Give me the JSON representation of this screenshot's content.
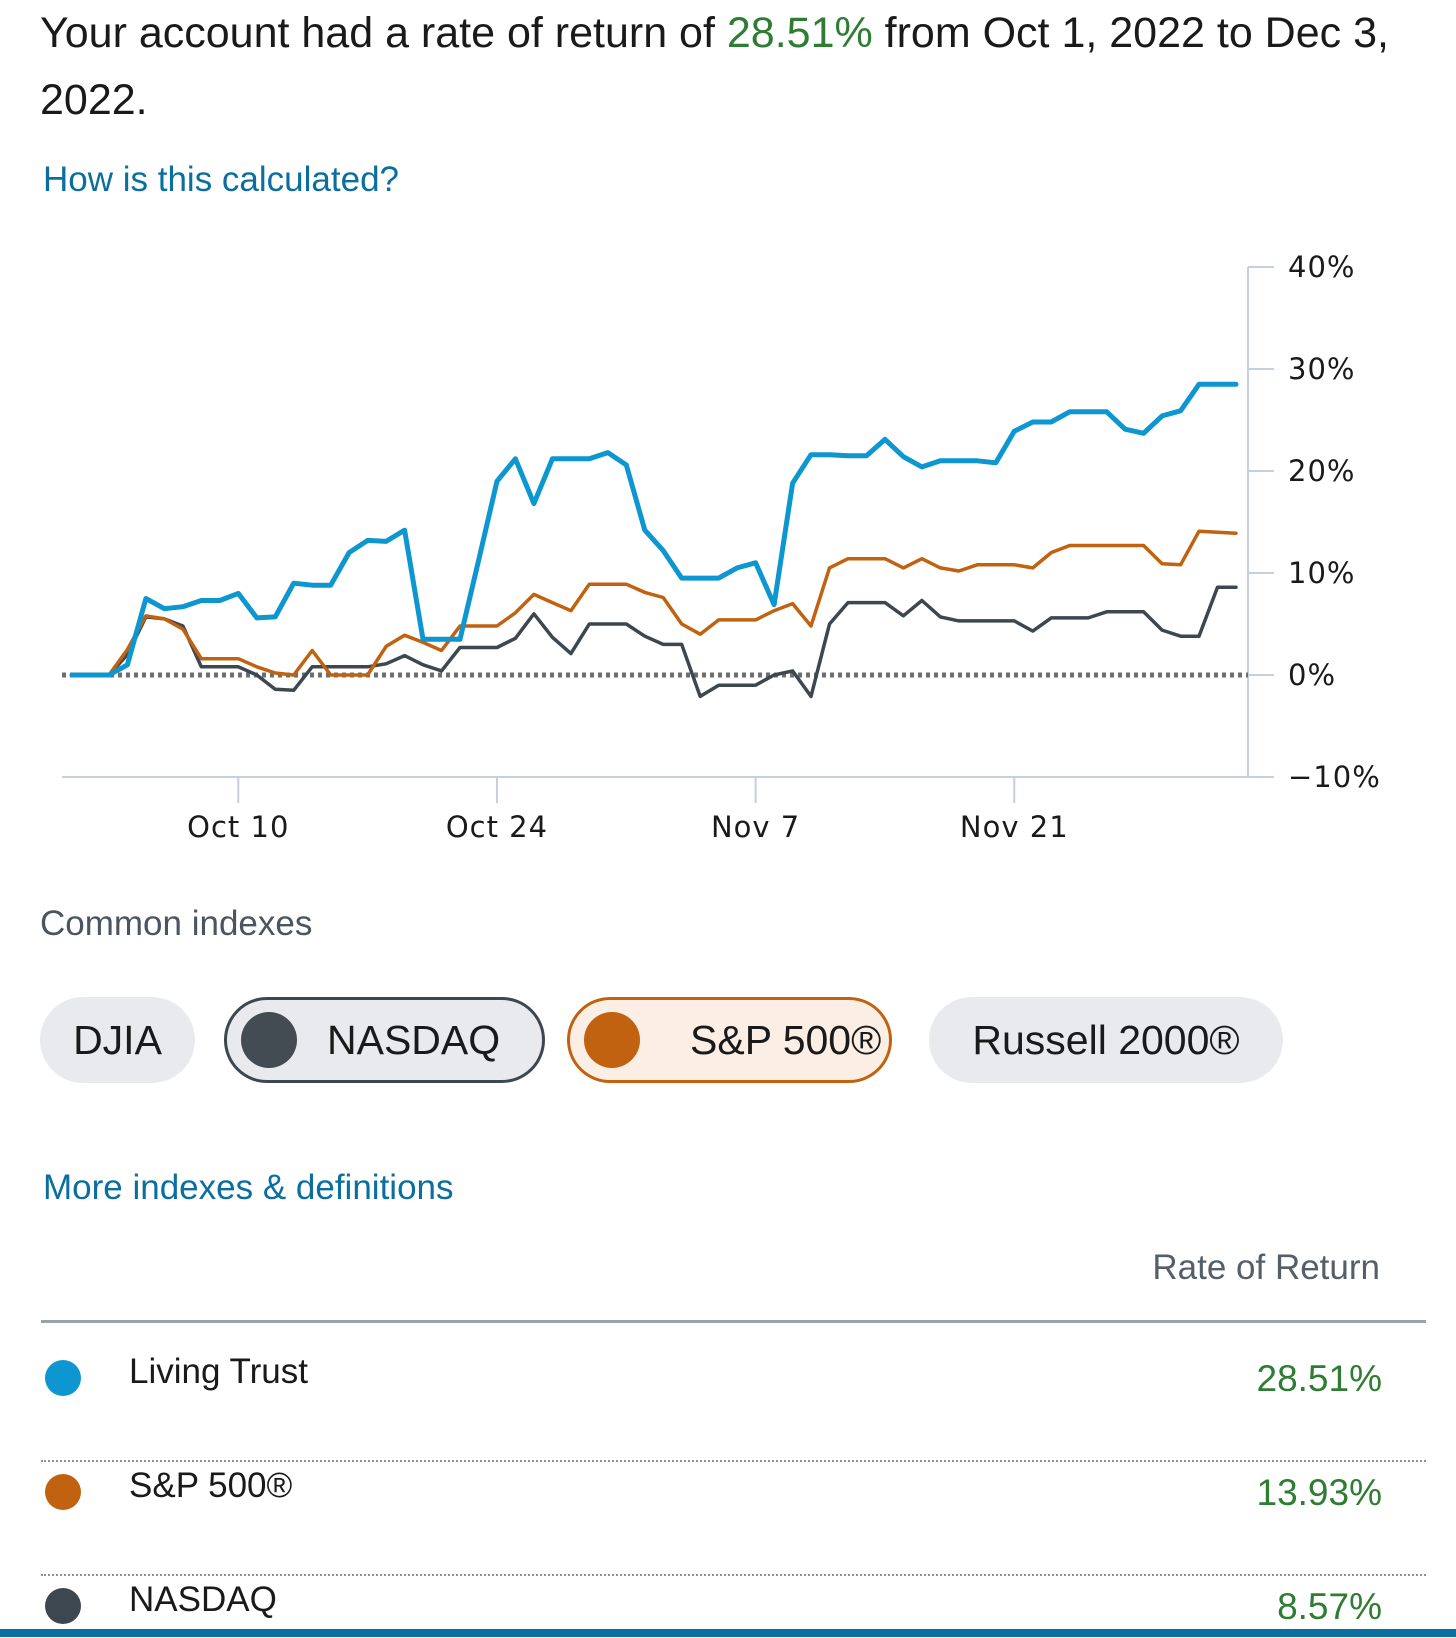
{
  "headline": {
    "prefix": "Your account had a rate of return of ",
    "rate": "28.51%",
    "suffix": " from Oct 1, 2022 to Dec 3, 2022."
  },
  "links": {
    "calc": "How is this calculated?",
    "more": "More indexes & definitions"
  },
  "colors": {
    "account": "#0d96cf",
    "sp500": "#c0620f",
    "nasdaq": "#3d4750",
    "positive": "#2e7d32",
    "link": "#0a6e9e"
  },
  "chart_data": {
    "type": "line",
    "title": "",
    "xlabel": "",
    "ylabel": "",
    "x_ticks": [
      "Oct 10",
      "Oct 24",
      "Nov 7",
      "Nov 21"
    ],
    "y_ticks": [
      "40%",
      "30%",
      "20%",
      "10%",
      "0%",
      "−10%"
    ],
    "ylim": [
      -10,
      40
    ],
    "y_axis_side": "right",
    "grid": false,
    "baseline": 0,
    "x": [
      "Oct 1",
      "Oct 2",
      "Oct 3",
      "Oct 4",
      "Oct 5",
      "Oct 6",
      "Oct 7",
      "Oct 8",
      "Oct 9",
      "Oct 10",
      "Oct 11",
      "Oct 12",
      "Oct 13",
      "Oct 14",
      "Oct 15",
      "Oct 16",
      "Oct 17",
      "Oct 18",
      "Oct 19",
      "Oct 20",
      "Oct 21",
      "Oct 22",
      "Oct 23",
      "Oct 24",
      "Oct 25",
      "Oct 26",
      "Oct 27",
      "Oct 28",
      "Oct 29",
      "Oct 30",
      "Oct 31",
      "Nov 1",
      "Nov 2",
      "Nov 3",
      "Nov 4",
      "Nov 5",
      "Nov 6",
      "Nov 7",
      "Nov 8",
      "Nov 9",
      "Nov 10",
      "Nov 11",
      "Nov 12",
      "Nov 13",
      "Nov 14",
      "Nov 15",
      "Nov 16",
      "Nov 17",
      "Nov 18",
      "Nov 19",
      "Nov 20",
      "Nov 21",
      "Nov 22",
      "Nov 23",
      "Nov 24",
      "Nov 25",
      "Nov 26",
      "Nov 27",
      "Nov 28",
      "Nov 29",
      "Nov 30",
      "Dec 1",
      "Dec 2",
      "Dec 3"
    ],
    "series": [
      {
        "name": "Living Trust",
        "color": "#0d96cf",
        "values": [
          0,
          0,
          0,
          1,
          7.5,
          6.5,
          6.7,
          7.3,
          7.3,
          8,
          5.6,
          5.7,
          9,
          8.8,
          8.8,
          12,
          13.2,
          13.1,
          14.2,
          3.5,
          3.5,
          3.5,
          11.2,
          19,
          21.2,
          16.8,
          21.2,
          21.2,
          21.2,
          21.8,
          20.6,
          14.2,
          12.2,
          9.5,
          9.5,
          9.5,
          10.5,
          11,
          6.9,
          18.8,
          21.6,
          21.6,
          21.5,
          21.5,
          23.1,
          21.4,
          20.4,
          21,
          21,
          21,
          20.8,
          23.9,
          24.8,
          24.8,
          25.8,
          25.8,
          25.8,
          24.1,
          23.7,
          25.4,
          25.9,
          28.5,
          28.5,
          28.5
        ]
      },
      {
        "name": "S&P 500®",
        "color": "#c0620f",
        "values": [
          0,
          0,
          0,
          2.5,
          5.8,
          5.5,
          4.5,
          1.6,
          1.6,
          1.6,
          0.8,
          0.2,
          0,
          2.4,
          0,
          0,
          0,
          2.8,
          3.9,
          3.2,
          2.4,
          4.8,
          4.8,
          4.8,
          6.1,
          7.9,
          7.1,
          6.3,
          8.9,
          8.9,
          8.9,
          8.1,
          7.6,
          5,
          4,
          5.4,
          5.4,
          5.4,
          6.3,
          7,
          4.8,
          10.5,
          11.4,
          11.4,
          11.4,
          10.5,
          11.4,
          10.5,
          10.2,
          10.8,
          10.8,
          10.8,
          10.5,
          12,
          12.7,
          12.7,
          12.7,
          12.7,
          12.7,
          10.9,
          10.8,
          14.1,
          14,
          13.9
        ]
      },
      {
        "name": "NASDAQ",
        "color": "#3d4750",
        "values": [
          0,
          0,
          0,
          2,
          5.7,
          5.5,
          4.8,
          0.8,
          0.8,
          0.8,
          0,
          -1.4,
          -1.5,
          0.8,
          0.8,
          0.8,
          0.8,
          1.1,
          1.9,
          1,
          0.4,
          2.7,
          2.7,
          2.7,
          3.6,
          6,
          3.7,
          2.1,
          5,
          5,
          5,
          3.8,
          3,
          3,
          -2.1,
          -1,
          -1,
          -1,
          0,
          0.4,
          -2.1,
          5,
          7.1,
          7.1,
          7.1,
          5.8,
          7.3,
          5.7,
          5.3,
          5.3,
          5.3,
          5.3,
          4.3,
          5.6,
          5.6,
          5.6,
          6.2,
          6.2,
          6.2,
          4.4,
          3.8,
          3.8,
          8.6,
          8.6
        ]
      }
    ]
  },
  "indexes": {
    "label": "Common indexes",
    "chips": [
      "DJIA",
      "NASDAQ",
      "S&P 500®",
      "Russell 2000®"
    ]
  },
  "table": {
    "header": "Rate of Return",
    "rows": [
      {
        "name": "Living Trust",
        "value": "28.51%",
        "color": "#0d96cf"
      },
      {
        "name": "S&P 500®",
        "value": "13.93%",
        "color": "#c0620f"
      },
      {
        "name": "NASDAQ",
        "value": "8.57%",
        "color": "#3d4750"
      }
    ]
  }
}
